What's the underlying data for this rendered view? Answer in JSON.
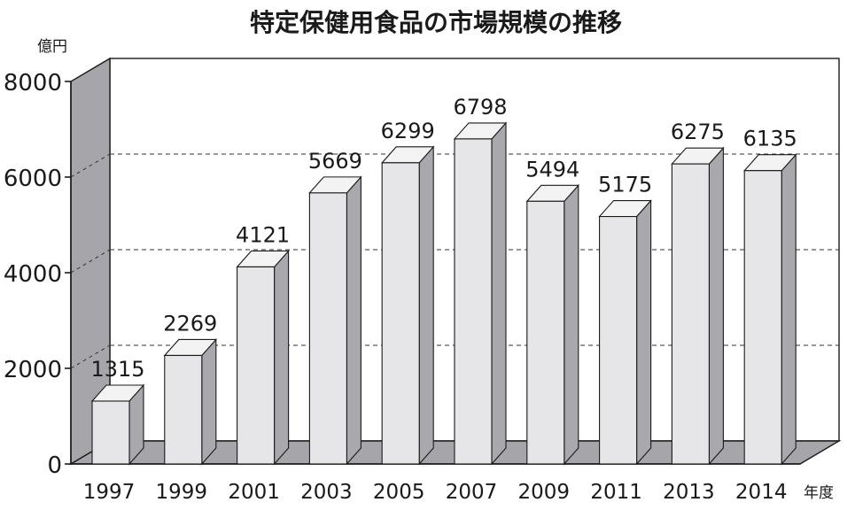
{
  "chart_data": {
    "type": "bar",
    "title": "特定保健用食品の市場規模の推移",
    "y_unit_label": "億円",
    "x_unit_label": "年度",
    "categories": [
      "1997",
      "1999",
      "2001",
      "2003",
      "2005",
      "2007",
      "2009",
      "2011",
      "2013",
      "2014"
    ],
    "values": [
      1315,
      2269,
      4121,
      5669,
      6299,
      6798,
      5494,
      5175,
      6275,
      6135
    ],
    "data_labels": [
      "1315",
      "2269",
      "4121",
      "5669",
      "6299",
      "6798",
      "5494",
      "5175",
      "6275",
      "6135"
    ],
    "ylim": [
      0,
      8000
    ],
    "y_ticks": [
      "0",
      "2000",
      "4000",
      "6000",
      "8000"
    ],
    "grid": "dashed horizontal",
    "style_3d": true,
    "colors": {
      "bar_front": "#e6e6e8",
      "bar_top": "#f3f3f4",
      "bar_side": "#a9a9ad",
      "back_wall": "#ffffff",
      "side_wall": "#a6a6aa",
      "floor": "#a6a6aa",
      "outline": "#1a1a1a"
    }
  }
}
